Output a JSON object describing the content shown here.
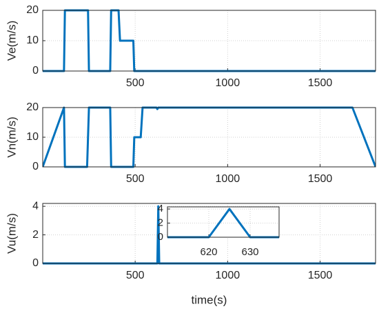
{
  "chart_data": [
    {
      "type": "line",
      "ylabel": "Ve(m/s)",
      "x": [
        0,
        115,
        120,
        245,
        250,
        365,
        370,
        410,
        418,
        490,
        495,
        1800
      ],
      "series": [
        {
          "color": "#0072bd",
          "values": [
            0,
            0,
            20,
            20,
            0,
            0,
            20,
            20,
            10,
            10,
            0,
            0
          ]
        }
      ],
      "xlim": [
        0,
        1800
      ],
      "ylim": [
        0,
        20
      ],
      "xticks": [
        500,
        1000,
        1500
      ],
      "yticks": [
        0,
        10,
        20
      ],
      "grid": true
    },
    {
      "type": "line",
      "ylabel": "Vn(m/s)",
      "x": [
        0,
        115,
        120,
        240,
        250,
        365,
        370,
        490,
        495,
        530,
        540,
        615,
        620,
        625,
        1675,
        1800
      ],
      "series": [
        {
          "color": "#0072bd",
          "values": [
            0,
            20,
            0,
            0,
            20,
            20,
            0,
            0,
            10,
            10,
            20,
            20,
            19.5,
            20,
            20,
            0
          ]
        }
      ],
      "xlim": [
        0,
        1800
      ],
      "ylim": [
        0,
        20
      ],
      "xticks": [
        500,
        1000,
        1500
      ],
      "yticks": [
        0,
        10,
        20
      ],
      "grid": true
    },
    {
      "type": "line",
      "ylabel": "Vu(m/s)",
      "xlabel": "time(s)",
      "x": [
        0,
        620,
        625,
        630,
        1800
      ],
      "series": [
        {
          "color": "#0072bd",
          "values": [
            0,
            0,
            4,
            0,
            0
          ]
        }
      ],
      "xlim": [
        0,
        1800
      ],
      "ylim": [
        0,
        4.2
      ],
      "xticks": [
        500,
        1000,
        1500
      ],
      "yticks": [
        0,
        2,
        4
      ],
      "grid": true
    },
    {
      "type": "line",
      "x": [
        610,
        620,
        625,
        630,
        637
      ],
      "series": [
        {
          "color": "#0072bd",
          "values": [
            0,
            0,
            4,
            0,
            0
          ]
        }
      ],
      "xlim": [
        610,
        637
      ],
      "ylim": [
        0,
        4.3
      ],
      "xticks": [
        620,
        630
      ],
      "yticks": [
        0,
        2,
        4
      ],
      "grid": true
    }
  ]
}
